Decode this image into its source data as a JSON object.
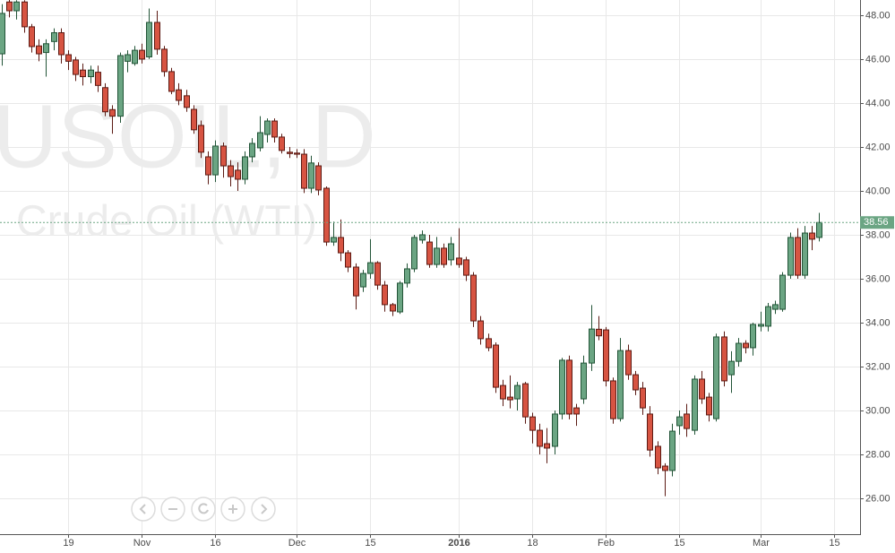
{
  "chart_data": {
    "type": "candlestick",
    "watermark": {
      "symbol": "USOIL, D",
      "description": "Crude Oil (WTI)"
    },
    "categories": [
      null,
      null,
      null,
      null,
      null,
      null,
      null,
      null,
      null,
      "19",
      null,
      null,
      null,
      null,
      null,
      null,
      null,
      null,
      null,
      "Nov",
      null,
      null,
      null,
      null,
      null,
      null,
      null,
      null,
      null,
      "16",
      null,
      null,
      null,
      null,
      null,
      null,
      null,
      null,
      null,
      null,
      "Dec",
      null,
      null,
      null,
      null,
      null,
      null,
      null,
      null,
      null,
      "15",
      null,
      null,
      null,
      null,
      null,
      null,
      null,
      null,
      null,
      null,
      null,
      "2016",
      null,
      null,
      null,
      null,
      null,
      null,
      null,
      null,
      null,
      "18",
      null,
      null,
      null,
      null,
      null,
      null,
      null,
      null,
      null,
      "Feb",
      null,
      null,
      null,
      null,
      null,
      null,
      null,
      null,
      null,
      "15",
      null,
      null,
      null,
      null,
      null,
      null,
      null,
      null,
      null,
      null,
      "Mar",
      null,
      null,
      null,
      null,
      null,
      null,
      null,
      null,
      null,
      "15"
    ],
    "open": [
      46.24,
      48.6,
      48.2,
      48.6,
      47.47,
      46.6,
      46.3,
      46.8,
      47.2,
      46.2,
      45.96,
      45.5,
      45.2,
      45.4,
      44.7,
      43.7,
      43.4,
      45.9,
      45.8,
      46.4,
      46.1,
      47.67,
      46.45,
      45.43,
      44.6,
      44.33,
      43.71,
      42.98,
      41.55,
      40.73,
      42.04,
      41.14,
      40.94,
      40.53,
      41.55,
      41.96,
      42.57,
      43.18,
      42.45,
      41.76,
      41.72,
      41.67,
      40.12,
      41.14,
      40.12,
      37.67,
      37.88,
      37.18,
      36.53,
      35.63,
      36.24,
      36.73,
      35.71,
      34.82,
      34.49,
      35.8,
      36.45,
      37.76,
      37.67,
      36.65,
      37.39,
      36.86,
      36.94,
      36.86,
      36.16,
      34.08,
      33.27,
      32.98,
      31.14,
      30.61,
      30.53,
      31.22,
      29.71,
      29.1,
      28.49,
      28.37,
      29.84,
      32.29,
      30.12,
      30.53,
      32.16,
      33.7,
      33.67,
      31.35,
      29.63,
      32.73,
      31.63,
      31.02,
      29.84,
      28.37,
      27.47,
      27.27,
      29.31,
      29.84,
      29.1,
      31.43,
      30.61,
      29.63,
      33.35,
      31.63,
      32.24,
      33.06,
      32.86,
      33.84,
      33.84,
      34.61,
      34.61,
      36.16,
      37.88,
      36.16,
      38.08,
      37.88,
      null,
      null
    ],
    "high": [
      48.5,
      48.69,
      48.68,
      48.68,
      47.6,
      46.9,
      46.9,
      47.4,
      47.4,
      46.4,
      46.1,
      45.8,
      45.7,
      45.7,
      44.9,
      43.9,
      46.3,
      46.4,
      46.6,
      46.7,
      48.3,
      48.2,
      46.6,
      45.6,
      44.9,
      44.6,
      43.9,
      43.2,
      41.8,
      42.3,
      42.2,
      41.4,
      41.3,
      41.8,
      42.4,
      43.4,
      43.3,
      43.3,
      42.6,
      42.0,
      41.9,
      41.9,
      41.6,
      41.3,
      40.2,
      38.6,
      38.7,
      37.3,
      36.7,
      36.4,
      37.8,
      36.8,
      35.9,
      34.9,
      35.9,
      36.7,
      38.0,
      38.2,
      38.0,
      37.9,
      37.6,
      37.9,
      38.3,
      37.0,
      36.3,
      34.3,
      33.5,
      33.1,
      31.4,
      31.6,
      31.3,
      31.3,
      29.9,
      29.4,
      29.2,
      30.0,
      32.4,
      32.5,
      30.3,
      32.5,
      34.8,
      34.3,
      33.8,
      31.5,
      33.3,
      33.0,
      31.8,
      31.3,
      30.2,
      28.6,
      27.6,
      29.4,
      30.0,
      30.3,
      31.6,
      31.8,
      30.8,
      33.5,
      33.6,
      32.7,
      33.3,
      33.2,
      34.0,
      34.5,
      34.9,
      35.0,
      36.3,
      38.1,
      38.3,
      38.4,
      38.4,
      39.0,
      null,
      null
    ],
    "low": [
      45.7,
      47.9,
      47.8,
      47.2,
      46.3,
      45.9,
      45.2,
      46.4,
      45.8,
      45.5,
      45.0,
      44.8,
      44.9,
      44.5,
      43.4,
      42.6,
      43.1,
      45.4,
      45.7,
      45.8,
      46.0,
      46.2,
      45.2,
      44.4,
      43.9,
      43.6,
      42.6,
      41.5,
      40.3,
      40.4,
      40.6,
      40.2,
      40.0,
      40.3,
      41.3,
      41.8,
      42.2,
      42.2,
      41.7,
      41.5,
      41.5,
      39.9,
      39.9,
      39.8,
      37.5,
      37.5,
      36.8,
      36.3,
      34.6,
      35.4,
      36.0,
      35.5,
      34.5,
      34.3,
      34.4,
      35.6,
      36.3,
      37.6,
      36.5,
      36.5,
      36.5,
      36.6,
      36.5,
      35.9,
      33.8,
      33.0,
      32.7,
      30.8,
      30.2,
      30.1,
      30.0,
      29.4,
      28.5,
      28.0,
      27.6,
      28.0,
      29.6,
      29.6,
      29.3,
      30.3,
      31.8,
      33.2,
      31.1,
      29.4,
      29.5,
      31.4,
      30.7,
      29.8,
      27.9,
      27.1,
      26.1,
      27.0,
      28.9,
      28.8,
      28.9,
      30.3,
      29.5,
      29.5,
      31.1,
      30.8,
      32.0,
      32.6,
      32.5,
      33.6,
      33.6,
      34.4,
      34.5,
      36.0,
      36.0,
      36.0,
      37.3,
      37.7,
      null,
      null
    ],
    "close": [
      48.08,
      48.2,
      48.6,
      47.47,
      46.57,
      46.24,
      46.7,
      47.2,
      46.2,
      45.9,
      45.3,
      45.2,
      45.5,
      44.8,
      43.6,
      43.4,
      46.16,
      46.2,
      46.4,
      46.0,
      47.67,
      46.45,
      45.43,
      44.53,
      44.12,
      43.8,
      42.78,
      41.76,
      40.73,
      42.04,
      41.14,
      40.65,
      40.53,
      41.55,
      42.16,
      42.65,
      43.18,
      42.45,
      41.84,
      41.7,
      41.67,
      40.12,
      41.27,
      40.04,
      37.67,
      37.88,
      37.18,
      36.53,
      35.22,
      36.24,
      36.73,
      35.71,
      34.82,
      34.53,
      35.8,
      36.45,
      37.88,
      38.0,
      36.65,
      37.39,
      36.65,
      37.59,
      36.65,
      36.16,
      34.08,
      33.27,
      32.86,
      31.06,
      30.53,
      30.49,
      31.14,
      29.71,
      29.1,
      28.37,
      28.29,
      29.84,
      32.29,
      29.84,
      29.84,
      32.16,
      33.71,
      33.4,
      31.35,
      29.63,
      32.73,
      31.63,
      30.94,
      30.12,
      28.2,
      27.39,
      27.27,
      29.06,
      29.71,
      29.18,
      31.43,
      30.53,
      29.8,
      33.35,
      31.35,
      32.24,
      33.06,
      32.86,
      33.92,
      33.92,
      34.73,
      34.82,
      36.16,
      37.88,
      36.16,
      38.08,
      37.8,
      38.56,
      null,
      null
    ],
    "up_color": "#6ba583",
    "down_color": "#d75442",
    "last_price": 38.56,
    "ylim": [
      24.37,
      48.69
    ],
    "yticks": [
      {
        "value": 26,
        "label": "26.00"
      },
      {
        "value": 28,
        "label": "28.00"
      },
      {
        "value": 30,
        "label": "30.00"
      },
      {
        "value": 32,
        "label": "32.00"
      },
      {
        "value": 34,
        "label": "34.00"
      },
      {
        "value": 36,
        "label": "36.00"
      },
      {
        "value": 38,
        "label": "38.00"
      },
      {
        "value": 40,
        "label": "40.00"
      },
      {
        "value": 42,
        "label": "42.00"
      },
      {
        "value": 44,
        "label": "44.00"
      },
      {
        "value": 46,
        "label": "46.00"
      },
      {
        "value": 48,
        "label": "48.00"
      }
    ],
    "grid": true
  }
}
